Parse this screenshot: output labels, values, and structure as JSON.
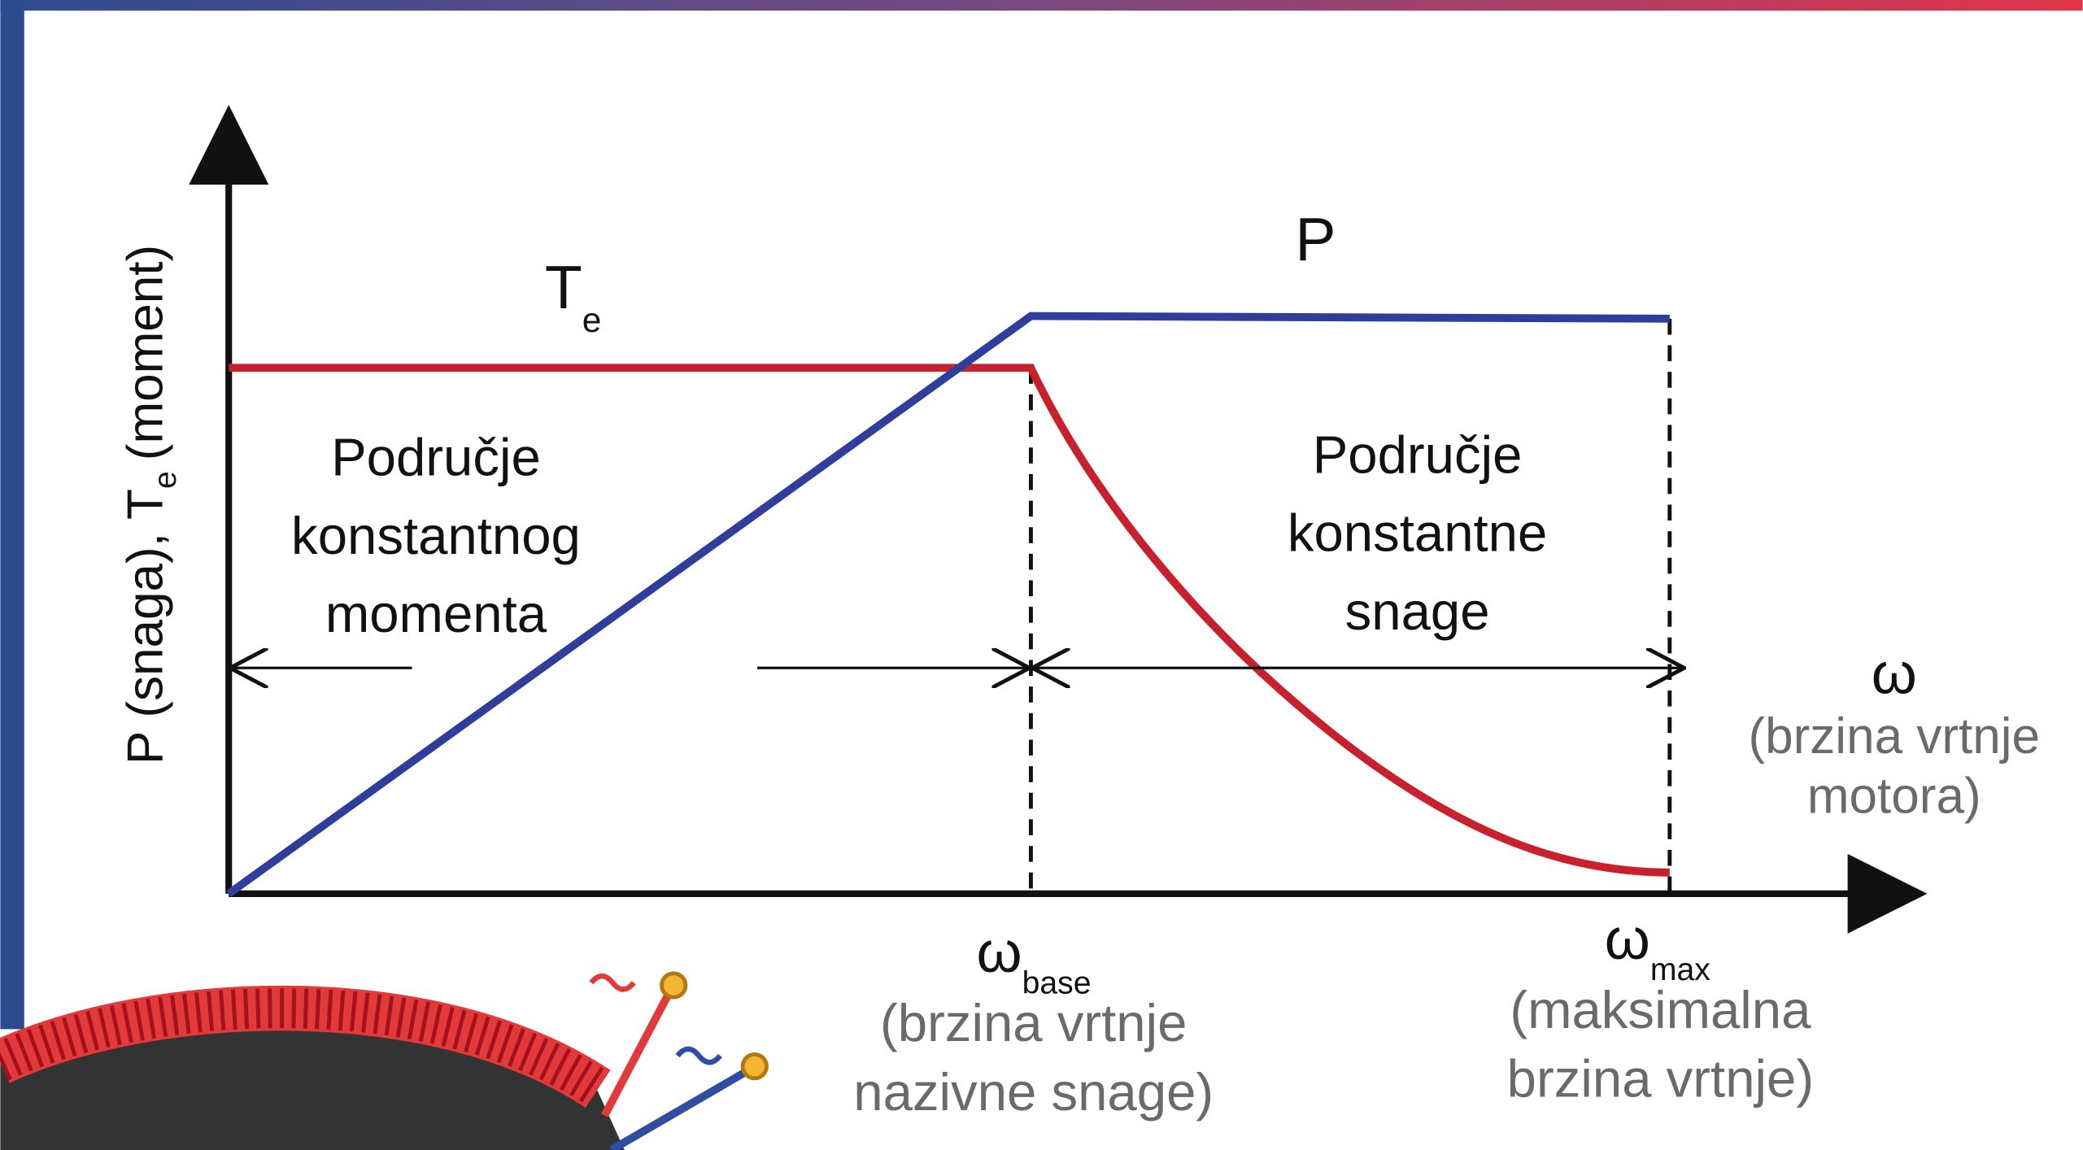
{
  "y_axis": {
    "label_main": "P (snaga), T",
    "label_sub": "e",
    "label_end": "(moment)"
  },
  "curves": {
    "torque": {
      "symbol": "T",
      "sub": "e"
    },
    "power": {
      "symbol": "P"
    }
  },
  "regions": {
    "left": [
      "Područje",
      "konstantnog",
      "momenta"
    ],
    "right": [
      "Područje",
      "konstantne",
      "snage"
    ]
  },
  "x_axis": {
    "symbol": "ω",
    "label": [
      "(brzina vrtnje",
      "motora)"
    ]
  },
  "x_marks": {
    "base": {
      "symbol": "ω",
      "sub": "base",
      "label": [
        "(brzina vrtnje",
        "nazivne snage)"
      ]
    },
    "max": {
      "symbol": "ω",
      "sub": "max",
      "label": [
        "(maksimalna",
        "brzina vrtnje)"
      ]
    }
  }
}
